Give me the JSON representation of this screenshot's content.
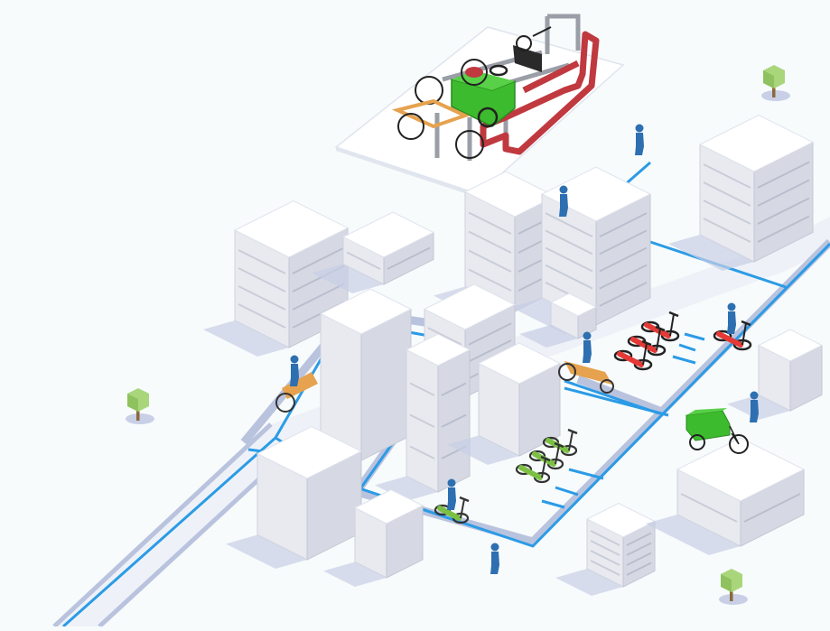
{
  "scene": {
    "background": "#f7fbfc",
    "colors": {
      "road_edge": "#b9c3de",
      "road_surface": "#eef2f8",
      "path_line": "#2b9be6",
      "building_top": "#ffffff",
      "building_left": "#e8eaf0",
      "building_right": "#d6d9e3",
      "shadow": "#c8cfe6",
      "rack_red": "#c0393f",
      "rack_grey": "#9a9ea6",
      "cargo_green": "#3dbb2e",
      "cargo_orange": "#e6a24e",
      "scooter_red": "#e53935",
      "scooter_green": "#7bc043",
      "person_blue": "#2d6fb1",
      "tree_crown": "#a9d67a",
      "tree_trunk": "#8a6a3c"
    },
    "icons": [
      "parking-rack-icon",
      "cargo-bike-icon",
      "bicycle-icon",
      "e-scooter-icon",
      "person-icon",
      "tree-icon",
      "building-icon"
    ]
  }
}
